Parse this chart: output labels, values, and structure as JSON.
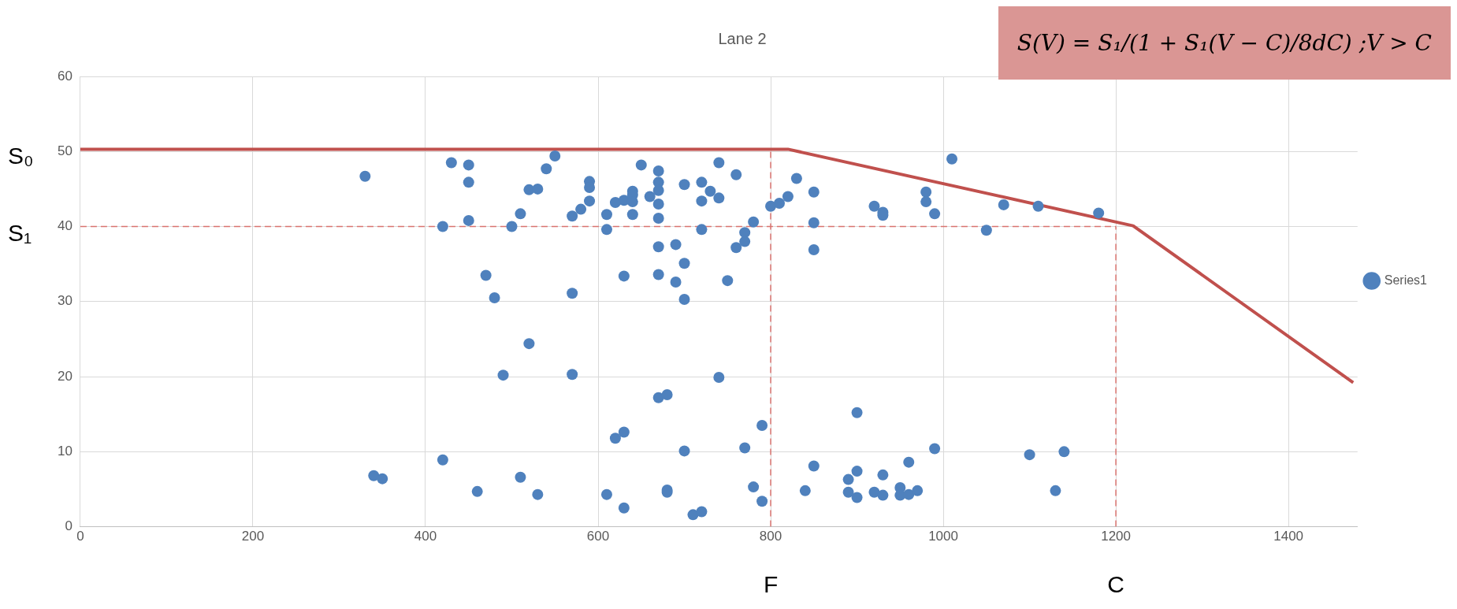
{
  "chart_data": {
    "type": "scatter",
    "title": "Lane 2",
    "xlim": [
      0,
      1480
    ],
    "xticks": [
      0,
      200,
      400,
      600,
      800,
      1000,
      1200,
      1400
    ],
    "ylim": [
      0,
      60
    ],
    "yticks": [
      0,
      10,
      20,
      30,
      40,
      50,
      60
    ],
    "grid": true,
    "legend": "right",
    "marker": "circle",
    "series": [
      {
        "name": "Series1",
        "color": "#4f81bd",
        "x": [
          330,
          340,
          350,
          420,
          420,
          430,
          450,
          450,
          450,
          460,
          470,
          480,
          490,
          500,
          510,
          510,
          520,
          520,
          530,
          530,
          540,
          550,
          570,
          570,
          570,
          580,
          590,
          590,
          590,
          610,
          610,
          610,
          620,
          620,
          630,
          630,
          630,
          630,
          640,
          640,
          640,
          640,
          650,
          660,
          670,
          670,
          670,
          670,
          670,
          670,
          670,
          670,
          680,
          680,
          680,
          690,
          690,
          700,
          700,
          700,
          700,
          710,
          720,
          720,
          720,
          720,
          730,
          740,
          740,
          740,
          750,
          760,
          760,
          770,
          770,
          770,
          780,
          780,
          790,
          790,
          800,
          810,
          820,
          830,
          840,
          850,
          850,
          850,
          850,
          890,
          890,
          900,
          900,
          900,
          920,
          920,
          930,
          930,
          930,
          930,
          950,
          950,
          960,
          960,
          970,
          980,
          980,
          990,
          990,
          1010,
          1050,
          1070,
          1100,
          1110,
          1130,
          1140,
          1180
        ],
        "values": [
          46.7,
          6.8,
          6.4,
          40,
          8.9,
          48.5,
          48.2,
          45.9,
          40.8,
          4.7,
          33.5,
          30.5,
          20.2,
          40,
          41.7,
          6.6,
          44.9,
          24.4,
          45,
          4.3,
          47.7,
          49.4,
          41.4,
          31.1,
          20.3,
          42.3,
          46,
          45.2,
          43.4,
          41.6,
          39.6,
          4.3,
          43.2,
          11.8,
          43.5,
          33.4,
          12.6,
          2.5,
          44.7,
          44.2,
          43.3,
          41.6,
          48.2,
          44,
          47.4,
          45.9,
          44.8,
          43,
          41.1,
          37.3,
          33.6,
          17.2,
          17.6,
          4.9,
          4.6,
          37.6,
          32.6,
          45.6,
          35.1,
          30.3,
          10.1,
          1.6,
          45.9,
          43.4,
          39.6,
          2,
          44.7,
          48.5,
          43.8,
          19.9,
          32.8,
          46.9,
          37.2,
          39.2,
          38,
          10.5,
          40.6,
          5.3,
          13.5,
          3.4,
          42.7,
          43.1,
          44,
          46.4,
          4.8,
          44.6,
          40.5,
          36.9,
          8.1,
          6.3,
          4.6,
          15.2,
          7.4,
          3.9,
          42.7,
          4.6,
          41.9,
          41.5,
          6.9,
          4.2,
          5.2,
          4.2,
          8.6,
          4.3,
          4.8,
          44.6,
          43.3,
          41.7,
          10.4,
          49,
          39.5,
          42.9,
          9.6,
          42.7,
          4.8,
          10,
          41.8
        ]
      },
      {
        "type": "line",
        "color": "#c0504d",
        "line_style": "solid",
        "marker": "none",
        "x": [
          0,
          820,
          1220,
          1475
        ],
        "values": [
          50.3,
          50.3,
          40.1,
          19.2
        ]
      },
      {
        "type": "line",
        "color": "#d9736f",
        "line_style": "dashed",
        "marker": "none",
        "x": [
          0,
          1200
        ],
        "values": [
          40,
          40
        ]
      },
      {
        "type": "line",
        "color": "#d9736f",
        "line_style": "dashed",
        "marker": "none",
        "x": [
          800,
          800
        ],
        "values": [
          0,
          50.3
        ]
      },
      {
        "type": "line",
        "color": "#d9736f",
        "line_style": "dashed",
        "marker": "none",
        "x": [
          1200,
          1200
        ],
        "values": [
          0,
          40
        ]
      }
    ],
    "annotations": [
      "S(V) = S₁/(1 + S₁(V − C)/8dC)   ;V > C",
      "S₀",
      "S₁",
      "F",
      "C"
    ]
  }
}
